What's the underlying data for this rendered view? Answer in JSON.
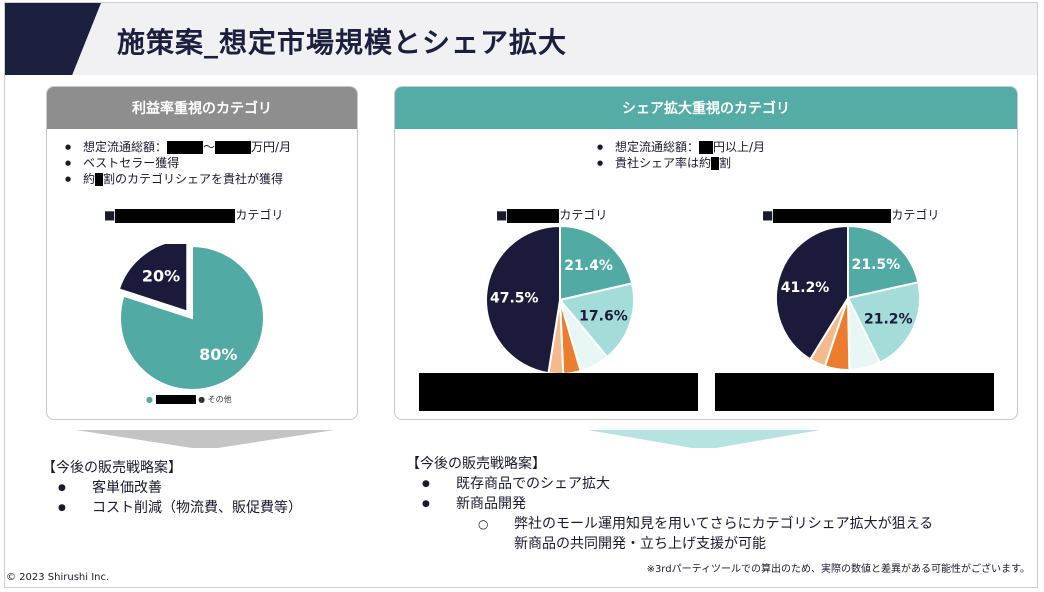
{
  "title": "施策案_想定市場規模とシェア拡大",
  "left_card": {
    "header": "利益率重視のカテゴリ",
    "bullets": {
      "b1_prefix": "想定流通総額：",
      "b1_mid": "〜",
      "b1_suffix": "万円/月",
      "b2": "ベストセラー獲得",
      "b3_prefix": "約",
      "b3_suffix": "割のカテゴリシェアを貴社が獲得"
    },
    "category_prefix": "■",
    "category_suffix": "カテゴリ",
    "legend_other": "その他",
    "chart_data": {
      "type": "pie",
      "slices": [
        {
          "label": "80%",
          "value": 80,
          "color": "#52aaa5"
        },
        {
          "label": "20%",
          "value": 20,
          "color": "#1c1a3a"
        }
      ]
    }
  },
  "right_card": {
    "header": "シェア拡大重視のカテゴリ",
    "bullets": {
      "b1_prefix": "想定流通総額：",
      "b1_suffix": "円以上/月",
      "b2_prefix": "貴社シェア率は約",
      "b2_suffix": "割"
    },
    "category_prefix": "■",
    "category_suffix": "カテゴリ",
    "charts": [
      {
        "type": "pie",
        "slices": [
          {
            "label": "21.4%",
            "value": 21.4,
            "color": "#52aaa5"
          },
          {
            "label": "17.6%",
            "value": 17.6,
            "color": "#a3dcd8"
          },
          {
            "label": "",
            "value": 6.5,
            "color": "#e8f6f5"
          },
          {
            "label": "",
            "value": 3.8,
            "color": "#ec7c2e"
          },
          {
            "label": "",
            "value": 3.2,
            "color": "#f4b98d"
          },
          {
            "label": "47.5%",
            "value": 47.5,
            "color": "#1c1a3a"
          }
        ]
      },
      {
        "type": "pie",
        "slices": [
          {
            "label": "21.5%",
            "value": 21.5,
            "color": "#52aaa5"
          },
          {
            "label": "21.2%",
            "value": 21.2,
            "color": "#a3dcd8"
          },
          {
            "label": "",
            "value": 7.0,
            "color": "#e8f6f5"
          },
          {
            "label": "",
            "value": 5.5,
            "color": "#ec7c2e"
          },
          {
            "label": "",
            "value": 3.6,
            "color": "#f4b98d"
          },
          {
            "label": "41.2%",
            "value": 41.2,
            "color": "#1c1a3a"
          }
        ]
      }
    ]
  },
  "strategy_left": {
    "heading": "【今後の販売戦略案】",
    "items": [
      "客単価改善",
      "コスト削減（物流費、販促費等）"
    ]
  },
  "strategy_right": {
    "heading": "【今後の販売戦略案】",
    "items": [
      "既存商品でのシェア拡大",
      "新商品開発"
    ],
    "sub_item_line1": "弊社のモール運用知見を用いてさらにカテゴリシェア拡大が狙える",
    "sub_item_line2": "新商品の共同開発・立ち上げ支援が可能"
  },
  "footnote": "※3rdパーティツールでの算出のため、実際の数値と差異がある可能性がございます。",
  "copyright": "© 2023 Shirushi Inc."
}
